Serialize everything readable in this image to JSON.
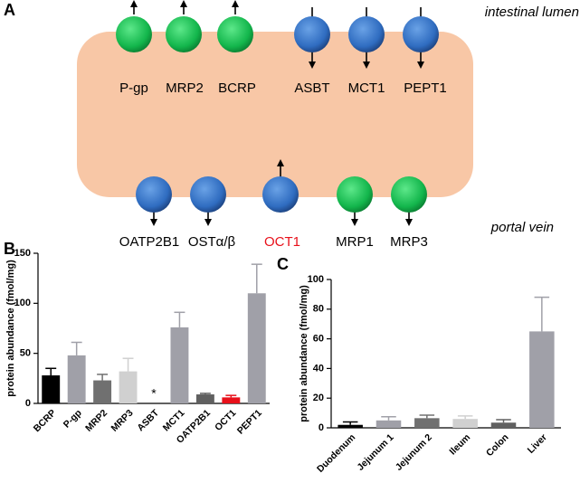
{
  "panel_a": {
    "label": "A",
    "top_label": "intestinal lumen",
    "bottom_label": "portal vein",
    "apical": [
      "P-gp",
      "MRP2",
      "BCRP",
      "ASBT",
      "MCT1",
      "PEPT1"
    ],
    "basolateral": [
      "OATP2B1",
      "OSTα/β",
      "OCT1",
      "MRP1",
      "MRP3"
    ]
  },
  "chart_data": [
    {
      "type": "bar",
      "panel": "B",
      "y_label": "protein abundance (fmol/mg)",
      "categories": [
        "BCRP",
        "P-gp",
        "MRP2",
        "MRP3",
        "ASBT",
        "MCT1",
        "OATP2B1",
        "OCT1",
        "PEPT1"
      ],
      "values": [
        28,
        48,
        23,
        32,
        null,
        76,
        9,
        6,
        110
      ],
      "errors": [
        7,
        13,
        6,
        13,
        null,
        15,
        1,
        2,
        29
      ],
      "colors": [
        "#000000",
        "#a0a0a8",
        "#707070",
        "#d0d0d0",
        "#a0a0a8",
        "#a0a0a8",
        "#606060",
        "#e8101a",
        "#a0a0a8"
      ],
      "annotations": [
        {
          "text": "*",
          "category": "ASBT"
        }
      ],
      "ylim": [
        0,
        150
      ],
      "yticks": [
        0,
        50,
        100,
        150
      ]
    },
    {
      "type": "bar",
      "panel": "C",
      "y_label": "protein abundance (fmol/mg)",
      "categories": [
        "Duodenum",
        "Jejunum 1",
        "Jejunum 2",
        "Ileum",
        "Colon",
        "Liver"
      ],
      "values": [
        2,
        5,
        6.5,
        6,
        3.5,
        65
      ],
      "errors": [
        2,
        2.5,
        2,
        2,
        2,
        23
      ],
      "colors": [
        "#000000",
        "#a0a0a8",
        "#707070",
        "#d0d0d0",
        "#606060",
        "#a0a0a8"
      ],
      "ylim": [
        0,
        100
      ],
      "yticks": [
        0,
        20,
        40,
        60,
        80,
        100
      ]
    }
  ]
}
